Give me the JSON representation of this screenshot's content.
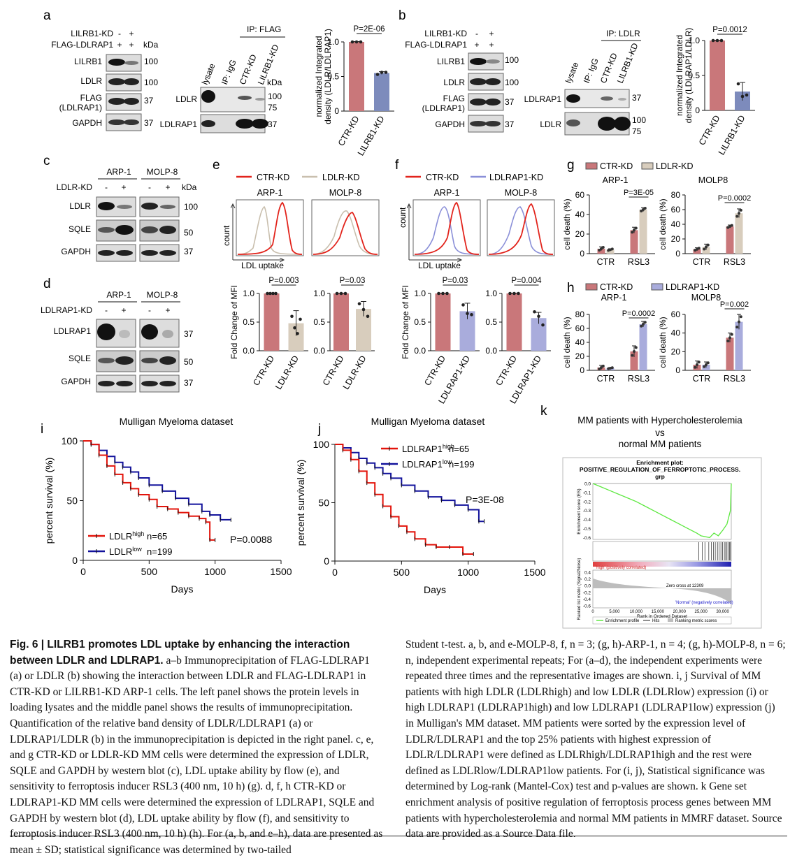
{
  "colors": {
    "ctr": "#c9777a",
    "ldlr_kd": "#d8cdbd",
    "ldlrap1_kd": "#a9acdc",
    "lilrb1_kd": "#7d8bbc",
    "ctr_line": "#e2241c",
    "ldlr_line": "#c9bfae",
    "ldlrap1_line": "#8a8fd8",
    "surv_high": "#e3140b",
    "surv_low": "#12129c",
    "gsea": "#5de840"
  },
  "panels": {
    "a": "a",
    "b": "b",
    "c": "c",
    "d": "d",
    "e": "e",
    "f": "f",
    "g": "g",
    "h": "h",
    "i": "i",
    "j": "j",
    "k": "k"
  },
  "a": {
    "row1": "LILRB1-KD",
    "row2": "FLAG-LDLRAP1",
    "signs1": [
      "-",
      "+"
    ],
    "signs2": [
      "+",
      "+"
    ],
    "kda": "kDa",
    "bands": [
      "LILRB1",
      "LDLR",
      "FLAG",
      "(LDLRAP1)",
      "GAPDH"
    ],
    "mw": [
      "100",
      "100",
      "37",
      "37"
    ],
    "ip": "IP: FLAG",
    "lanes": [
      "lysate",
      "IP: IgG",
      "CTR-KD",
      "LILRB1-KD"
    ],
    "ip_bands": [
      "LDLR",
      "LDLRAP1"
    ],
    "ip_mw": [
      "100",
      "75",
      "37"
    ]
  },
  "b": {
    "row1": "LILRB1-KD",
    "row2": "FLAG-LDLRAP1",
    "signs1": [
      "-",
      "+"
    ],
    "signs2": [
      "+",
      "+"
    ],
    "bands": [
      "LILRB1",
      "LDLR",
      "FLAG",
      "(LDLRAP1)",
      "GAPDH"
    ],
    "mw": [
      "100",
      "100",
      "37",
      "37"
    ],
    "ip": "IP: LDLR",
    "lanes": [
      "lysate",
      "IP: IgG",
      "CTR-KD",
      "LILRB1-KD"
    ],
    "ip_bands": [
      "LDLRAP1",
      "LDLR"
    ],
    "ip_mw": [
      "37",
      "100",
      "75"
    ]
  },
  "c": {
    "row": "LDLR-KD",
    "cells": [
      "ARP-1",
      "MOLP-8"
    ],
    "signs": [
      "-",
      "+",
      "-",
      "+"
    ],
    "kda": "kDa",
    "bands": [
      "LDLR",
      "SQLE",
      "GAPDH"
    ],
    "mw": [
      "100",
      "50",
      "37"
    ]
  },
  "d": {
    "row": "LDLRAP1-KD",
    "cells": [
      "ARP-1",
      "MOLP-8"
    ],
    "signs": [
      "-",
      "+",
      "-",
      "+"
    ],
    "bands": [
      "LDLRAP1",
      "SQLE",
      "GAPDH"
    ],
    "mw": [
      "37",
      "50",
      "37"
    ]
  },
  "e": {
    "legend": [
      "CTR-KD",
      "LDLR-KD"
    ],
    "cells": [
      "ARP-1",
      "MOLP-8"
    ],
    "ylabel": "count",
    "xlabel": "LDL uptake",
    "bar_ylabel": "Fold Change of MFI",
    "categories": [
      "CTR-KD",
      "LDLR-KD"
    ],
    "pvals": [
      "P=0.003",
      "P=0.03"
    ]
  },
  "f": {
    "legend": [
      "CTR-KD",
      "LDLRAP1-KD"
    ],
    "cells": [
      "ARP-1",
      "MOLP-8"
    ],
    "ylabel": "count",
    "xlabel": "LDL uptake",
    "bar_ylabel": "Fold Change of MFI",
    "categories": [
      "CTR-KD",
      "LDLRAP1-KD"
    ],
    "pvals": [
      "P=0.03",
      "P=0.004"
    ]
  },
  "g": {
    "legend": [
      "CTR-KD",
      "LDLR-KD"
    ],
    "cells": [
      "ARP-1",
      "MOLP8"
    ],
    "ylabel": "cell death (%)",
    "categories": [
      "CTR",
      "RSL3"
    ],
    "pvals": [
      "P=3E-05",
      "P=0.0002"
    ]
  },
  "h": {
    "legend": [
      "CTR-KD",
      "LDLRAP1-KD"
    ],
    "cells": [
      "ARP-1",
      "MOLP8"
    ],
    "ylabel": "cell death (%)",
    "categories": [
      "CTR",
      "RSL3"
    ],
    "pvals": [
      "P=0.0002",
      "P=0.002"
    ]
  },
  "i": {
    "title": "Mulligan Myeloma dataset",
    "ylabel": "percent survival (%)",
    "xlabel": "Days",
    "pval": "P=0.0088",
    "legend": [
      {
        "name": "LDLR",
        "sup": "high",
        "n": "n=65"
      },
      {
        "name": "LDLR",
        "sup": "low",
        "n": "n=199"
      }
    ]
  },
  "j": {
    "title": "Mulligan Myeloma dataset",
    "ylabel": "percent survival (%)",
    "xlabel": "Days",
    "pval": "P=3E-08",
    "legend": [
      {
        "name": "LDLRAP1",
        "sup": "high",
        "n": "n=65"
      },
      {
        "name": "LDLRAP1",
        "sup": "low",
        "n": "n=199"
      }
    ]
  },
  "k": {
    "title": [
      "MM patients with Hypercholesterolemia",
      "vs",
      "normal MM patients"
    ],
    "plot_title": [
      "Enrichment plot:",
      "POSITIVE_REGULATION_OF_FERROPTOTIC_PROCESS.",
      "grp"
    ],
    "es_label": "Enrichment score (ES)",
    "rank_label": "Ranked list metric (Signal2Noise)",
    "xlabel": "Rank in Ordered Dataset",
    "zero_cross": "Zero cross at 12309",
    "pos_label": "'high' (positively correlated)",
    "neg_label": "'Normal' (negatively correlated)",
    "legend": [
      "Enrichment profile",
      "Hits",
      "Ranking metric scores"
    ],
    "es_ticks": [
      "0.0",
      "-0.1",
      "-0.2",
      "-0.3",
      "-0.4",
      "-0.5",
      "-0.6"
    ],
    "rank_ticks": [
      "0.4",
      "0.2",
      "0.0",
      "-0.2",
      "-0.4",
      "-0.6"
    ],
    "x_ticks": [
      "0",
      "5,000",
      "10,000",
      "15,000",
      "20,000",
      "25,000",
      "30,000"
    ]
  },
  "caption": {
    "title": "Fig. 6 | LILRB1 promotes LDL uptake by enhancing the interaction between LDLR and LDLRAP1.",
    "left": "a–b Immunoprecipitation of FLAG-LDLRAP1 (a) or LDLR (b) showing the interaction between LDLR and FLAG-LDLRAP1 in CTR-KD or LILRB1-KD ARP-1 cells. The left panel shows the protein levels in loading lysates and the middle panel shows the results of immunoprecipitation. Quantification of the relative band density of LDLR/LDLRAP1 (a) or LDLRAP1/LDLR (b) in the immunoprecipitation is depicted in the right panel. c, e, and g CTR-KD or LDLR-KD MM cells were determined the expression of LDLR, SQLE and GAPDH by western blot (c), LDL uptake ability by flow (e), and sensitivity to ferroptosis inducer RSL3 (400 nm, 10 h) (g). d, f, h CTR-KD or LDLRAP1-KD MM cells were determined the expression of LDLRAP1, SQLE and GAPDH by western blot (d), LDL uptake ability by flow (f), and sensitivity to ferroptosis inducer RSL3 (400 nm, 10 h) (h). For (a, b, and e–h), data are presented as mean ± SD; statistical significance was determined by two-tailed",
    "right": "Student t-test. a, b, and e-MOLP-8, f, n = 3; (g, h)-ARP-1, n = 4; (g, h)-MOLP-8, n = 6; n, independent experimental repeats; For (a–d), the independent experiments were repeated three times and the representative images are shown. i, j Survival of MM patients with high LDLR (LDLRhigh) and low LDLR (LDLRlow) expression (i) or high LDLRAP1 (LDLRAP1high) and low LDLRAP1 (LDLRAP1low) expression (j) in Mulligan's MM dataset. MM patients were sorted by the expression level of LDLR/LDLRAP1 and the top 25% patients with highest expression of LDLR/LDLRAP1 were defined as LDLRhigh/LDLRAP1high and the rest were defined as LDLRlow/LDLRAP1low patients. For (i, j), Statistical significance was determined by Log-rank (Mantel-Cox) test and p-values are shown. k Gene set enrichment analysis of positive regulation of ferroptosis process genes between MM patients with hypercholesterolemia and normal MM patients in MMRF dataset. Source data are provided as a Source Data file."
  },
  "chart_data": [
    {
      "type": "bar",
      "panel": "a",
      "categories": [
        "CTR-KD",
        "LILRB1-KD"
      ],
      "values": [
        1.0,
        0.55
      ],
      "errors": [
        0.005,
        0.02
      ],
      "points": [
        [
          1,
          1,
          1
        ],
        [
          0.53,
          0.56,
          0.56
        ]
      ],
      "ylabel": "normalized Integrated density (LDLR/LDLRAP1)",
      "ylim": [
        0,
        1
      ],
      "yticks": [
        "0",
        "0.5",
        "1.0"
      ],
      "pval": "P=2E-06"
    },
    {
      "type": "bar",
      "panel": "b",
      "categories": [
        "CTR-KD",
        "LILRB1-KD"
      ],
      "values": [
        1.0,
        0.27
      ],
      "errors": [
        0.005,
        0.13
      ],
      "points": [
        [
          1,
          1,
          1
        ],
        [
          0.38,
          0.2,
          0.22
        ]
      ],
      "ylabel": "normalized Integrated density (LDLRAP1/LDLR)",
      "ylim": [
        0,
        1
      ],
      "yticks": [
        "0",
        "0.5",
        "1.0"
      ],
      "pval": "P=0.0012"
    },
    {
      "type": "bar",
      "panel": "e-ARP-1",
      "categories": [
        "CTR-KD",
        "LDLR-KD"
      ],
      "values": [
        1.0,
        0.48
      ],
      "errors": [
        0.005,
        0.22
      ],
      "points": [
        [
          1,
          1,
          1,
          1
        ],
        [
          0.6,
          0.4,
          0.3,
          0.55
        ]
      ],
      "ylabel": "Fold Change of MFI",
      "ylim": [
        0,
        1
      ],
      "yticks": [
        "0.0",
        "0.5",
        "1.0"
      ],
      "pval": "P=0.003"
    },
    {
      "type": "bar",
      "panel": "e-MOLP-8",
      "categories": [
        "CTR-KD",
        "LDLR-KD"
      ],
      "values": [
        1.0,
        0.73
      ],
      "errors": [
        0.005,
        0.13
      ],
      "points": [
        [
          1,
          1,
          1
        ],
        [
          0.82,
          0.72,
          0.6
        ]
      ],
      "ylabel": "",
      "ylim": [
        0,
        1
      ],
      "yticks": [
        "0.0",
        "0.5",
        "1.0"
      ],
      "pval": "P=0.03"
    },
    {
      "type": "bar",
      "panel": "f-ARP-1",
      "categories": [
        "CTR-KD",
        "LDLRAP1-KD"
      ],
      "values": [
        1.0,
        0.69
      ],
      "errors": [
        0.005,
        0.14
      ],
      "points": [
        [
          1,
          1,
          1
        ],
        [
          0.8,
          0.65,
          0.63
        ]
      ],
      "ylabel": "Fold Change of MFI",
      "ylim": [
        0,
        1
      ],
      "yticks": [
        "0.0",
        "0.5",
        "1.0"
      ],
      "pval": "P=0.03"
    },
    {
      "type": "bar",
      "panel": "f-MOLP-8",
      "categories": [
        "CTR-KD",
        "LDLRAP1-KD"
      ],
      "values": [
        1.0,
        0.57
      ],
      "errors": [
        0.005,
        0.1
      ],
      "points": [
        [
          1,
          1,
          1
        ],
        [
          0.68,
          0.6,
          0.45
        ]
      ],
      "ylabel": "",
      "ylim": [
        0,
        1
      ],
      "yticks": [
        "0.0",
        "0.5",
        "1.0"
      ],
      "pval": "P=0.004"
    },
    {
      "type": "bar",
      "panel": "g-ARP-1",
      "categories": [
        "CTR",
        "RSL3"
      ],
      "series": [
        {
          "name": "CTR-KD",
          "values": [
            5,
            24
          ],
          "errors": [
            2,
            3
          ]
        },
        {
          "name": "LDLR-KD",
          "values": [
            4,
            45
          ],
          "errors": [
            1,
            2
          ]
        }
      ],
      "ylabel": "cell death (%)",
      "ylim": [
        0,
        60
      ],
      "yticks": [
        "0",
        "20",
        "40",
        "60"
      ],
      "pval": "P=3E-05"
    },
    {
      "type": "bar",
      "panel": "g-MOLP8",
      "categories": [
        "CTR",
        "RSL3"
      ],
      "series": [
        {
          "name": "CTR-KD",
          "values": [
            6,
            37
          ],
          "errors": [
            2,
            2
          ]
        },
        {
          "name": "LDLR-KD",
          "values": [
            9,
            55
          ],
          "errors": [
            4,
            6
          ]
        }
      ],
      "ylabel": "cell death (%)",
      "ylim": [
        0,
        80
      ],
      "yticks": [
        "0",
        "20",
        "40",
        "60",
        "80"
      ],
      "pval": "P=0.0002"
    },
    {
      "type": "bar",
      "panel": "h-ARP-1",
      "categories": [
        "CTR",
        "RSL3"
      ],
      "series": [
        {
          "name": "CTR-KD",
          "values": [
            4,
            27
          ],
          "errors": [
            3,
            8
          ]
        },
        {
          "name": "LDLRAP1-KD",
          "values": [
            3,
            66
          ],
          "errors": [
            1,
            4
          ]
        }
      ],
      "ylabel": "cell death (%)",
      "ylim": [
        0,
        80
      ],
      "yticks": [
        "0",
        "20",
        "40",
        "60",
        "80"
      ],
      "pval": "P=0.0002"
    },
    {
      "type": "bar",
      "panel": "h-MOLP8",
      "categories": [
        "CTR",
        "RSL3"
      ],
      "series": [
        {
          "name": "CTR-KD",
          "values": [
            6,
            35
          ],
          "errors": [
            4,
            5
          ]
        },
        {
          "name": "LDLRAP1-KD",
          "values": [
            6,
            52
          ],
          "errors": [
            3,
            8
          ]
        }
      ],
      "ylabel": "cell death (%)",
      "ylim": [
        0,
        60
      ],
      "yticks": [
        "0",
        "20",
        "40",
        "60"
      ],
      "pval": "P=0.002"
    },
    {
      "type": "line",
      "panel": "i",
      "xlabel": "Days",
      "ylabel": "percent survival (%)",
      "xlim": [
        0,
        1500
      ],
      "ylim": [
        0,
        100
      ],
      "xticks": [
        "0",
        "500",
        "1000",
        "1500"
      ],
      "yticks": [
        "0",
        "50",
        "100"
      ],
      "series": [
        {
          "name": "LDLRhigh",
          "x": [
            0,
            60,
            120,
            180,
            240,
            300,
            360,
            420,
            500,
            560,
            640,
            720,
            800,
            880,
            930,
            960,
            1000
          ],
          "y": [
            100,
            97,
            88,
            79,
            72,
            65,
            60,
            55,
            51,
            45,
            43,
            40,
            37,
            35,
            32,
            17,
            17
          ]
        },
        {
          "name": "LDLRlow",
          "x": [
            0,
            60,
            120,
            180,
            240,
            300,
            360,
            420,
            500,
            600,
            700,
            800,
            900,
            960,
            1040,
            1120
          ],
          "y": [
            100,
            97,
            92,
            87,
            82,
            78,
            74,
            69,
            63,
            58,
            52,
            47,
            41,
            38,
            34,
            34
          ]
        }
      ]
    },
    {
      "type": "line",
      "panel": "j",
      "xlabel": "Days",
      "ylabel": "percent survival (%)",
      "xlim": [
        0,
        1500
      ],
      "ylim": [
        0,
        100
      ],
      "xticks": [
        "0",
        "500",
        "1000",
        "1500"
      ],
      "yticks": [
        "0",
        "50",
        "100"
      ],
      "series": [
        {
          "name": "LDLRAP1high",
          "x": [
            0,
            60,
            120,
            180,
            240,
            300,
            360,
            420,
            480,
            540,
            600,
            680,
            760,
            860,
            960,
            1040
          ],
          "y": [
            100,
            95,
            87,
            77,
            67,
            57,
            47,
            38,
            30,
            25,
            19,
            14,
            12,
            12,
            6,
            6
          ]
        },
        {
          "name": "LDLRAP1low",
          "x": [
            0,
            60,
            120,
            180,
            240,
            300,
            360,
            420,
            500,
            600,
            700,
            800,
            900,
            1000,
            1080,
            1120
          ],
          "y": [
            100,
            97,
            93,
            88,
            84,
            80,
            75,
            71,
            65,
            60,
            55,
            52,
            48,
            44,
            34,
            34
          ]
        }
      ]
    },
    {
      "type": "line",
      "panel": "k",
      "xlabel": "Rank in Ordered Dataset",
      "ylabel": "Enrichment score (ES)",
      "xlim": [
        0,
        32000
      ],
      "ylim": [
        -0.6,
        0
      ],
      "series": [
        {
          "name": "Enrichment profile",
          "x": [
            0,
            2000,
            4000,
            6000,
            8000,
            10000,
            12000,
            14000,
            16000,
            18000,
            20000,
            22000,
            24000,
            25000,
            27000,
            28000,
            29000,
            30000,
            31000,
            31800,
            32000
          ],
          "y": [
            0,
            -0.04,
            -0.08,
            -0.12,
            -0.16,
            -0.2,
            -0.25,
            -0.3,
            -0.35,
            -0.4,
            -0.45,
            -0.5,
            -0.55,
            -0.58,
            -0.6,
            -0.55,
            -0.58,
            -0.52,
            -0.45,
            -0.3,
            0
          ]
        }
      ]
    }
  ]
}
